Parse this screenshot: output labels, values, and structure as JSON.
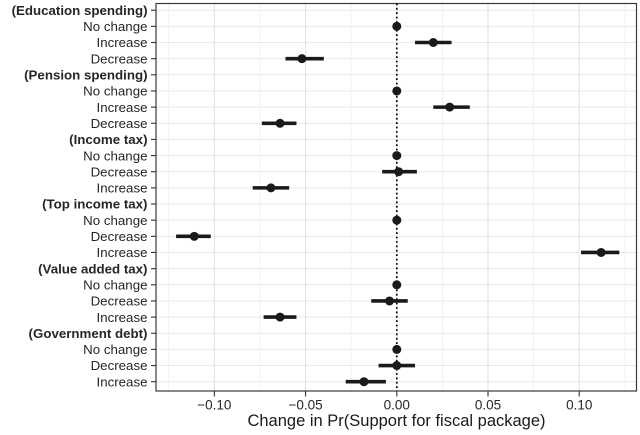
{
  "chart_data": {
    "type": "scatter",
    "subtype": "forest-dot-whisker (pointrange)",
    "title": "",
    "xlabel": "Change in Pr(Support for fiscal package)",
    "ylabel": "",
    "legend": "none",
    "grid": true,
    "x_axis": {
      "lim": [
        -0.132,
        0.1314
      ],
      "ticks": [
        -0.1,
        -0.05,
        0.0,
        0.05,
        0.1
      ],
      "tick_labels": [
        "−0.10",
        "−0.05",
        "0.00",
        "0.05",
        "0.10"
      ],
      "minor_ticks": [
        -0.125,
        -0.075,
        -0.025,
        0.025,
        0.075,
        0.125
      ],
      "reference_line": 0
    },
    "rows": [
      {
        "label": "(Education spending)",
        "header": true,
        "estimate": null,
        "lo": null,
        "hi": null
      },
      {
        "label": "No change",
        "header": false,
        "estimate": 0.0,
        "lo": 0.0,
        "hi": 0.0
      },
      {
        "label": "Increase",
        "header": false,
        "estimate": 0.02,
        "lo": 0.01,
        "hi": 0.03
      },
      {
        "label": "Decrease",
        "header": false,
        "estimate": -0.052,
        "lo": -0.061,
        "hi": -0.04
      },
      {
        "label": "(Pension spending)",
        "header": true,
        "estimate": null,
        "lo": null,
        "hi": null
      },
      {
        "label": "No change",
        "header": false,
        "estimate": 0.0,
        "lo": 0.0,
        "hi": 0.0
      },
      {
        "label": "Increase",
        "header": false,
        "estimate": 0.029,
        "lo": 0.02,
        "hi": 0.04
      },
      {
        "label": "Decrease",
        "header": false,
        "estimate": -0.064,
        "lo": -0.074,
        "hi": -0.055
      },
      {
        "label": "(Income tax)",
        "header": true,
        "estimate": null,
        "lo": null,
        "hi": null
      },
      {
        "label": "No change",
        "header": false,
        "estimate": 0.0,
        "lo": 0.0,
        "hi": 0.0
      },
      {
        "label": "Decrease",
        "header": false,
        "estimate": 0.001,
        "lo": -0.008,
        "hi": 0.011
      },
      {
        "label": "Increase",
        "header": false,
        "estimate": -0.069,
        "lo": -0.079,
        "hi": -0.059
      },
      {
        "label": "(Top income tax)",
        "header": true,
        "estimate": null,
        "lo": null,
        "hi": null
      },
      {
        "label": "No change",
        "header": false,
        "estimate": 0.0,
        "lo": 0.0,
        "hi": 0.0
      },
      {
        "label": "Decrease",
        "header": false,
        "estimate": -0.111,
        "lo": -0.121,
        "hi": -0.102
      },
      {
        "label": "Increase",
        "header": false,
        "estimate": 0.112,
        "lo": 0.101,
        "hi": 0.122
      },
      {
        "label": "(Value added tax)",
        "header": true,
        "estimate": null,
        "lo": null,
        "hi": null
      },
      {
        "label": "No change",
        "header": false,
        "estimate": 0.0,
        "lo": 0.0,
        "hi": 0.0
      },
      {
        "label": "Decrease",
        "header": false,
        "estimate": -0.004,
        "lo": -0.014,
        "hi": 0.006
      },
      {
        "label": "Increase",
        "header": false,
        "estimate": -0.064,
        "lo": -0.073,
        "hi": -0.055
      },
      {
        "label": "(Government debt)",
        "header": true,
        "estimate": null,
        "lo": null,
        "hi": null
      },
      {
        "label": "No change",
        "header": false,
        "estimate": 0.0,
        "lo": 0.0,
        "hi": 0.0
      },
      {
        "label": "Decrease",
        "header": false,
        "estimate": 0.0,
        "lo": -0.01,
        "hi": 0.01
      },
      {
        "label": "Increase",
        "header": false,
        "estimate": -0.018,
        "lo": -0.028,
        "hi": -0.006
      }
    ],
    "colors": {
      "point": "#1a1a1a",
      "ci_line": "#1a1a1a",
      "zero_line": "#000000",
      "grid_major": "#e3e3e3",
      "grid_minor": "#f1f1f1",
      "grid_row": "#e9e9e9",
      "panel_border": "#3a3a3a",
      "tick_mark": "#333333",
      "text": "#262626",
      "background": "#ffffff"
    }
  }
}
